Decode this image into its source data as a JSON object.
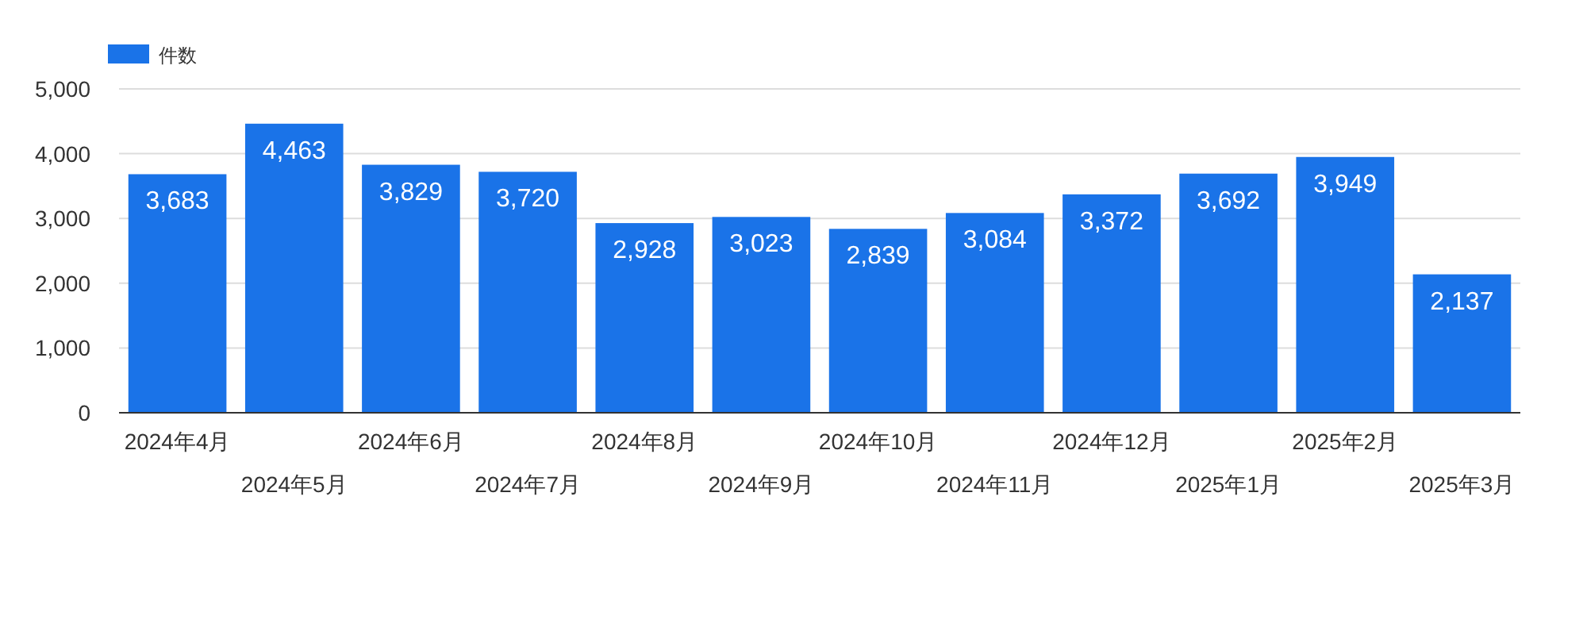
{
  "chart_data": {
    "type": "bar",
    "categories": [
      "2024年4月",
      "2024年5月",
      "2024年6月",
      "2024年7月",
      "2024年8月",
      "2024年9月",
      "2024年10月",
      "2024年11月",
      "2024年12月",
      "2025年1月",
      "2025年2月",
      "2025年3月"
    ],
    "series": [
      {
        "name": "件数",
        "color": "#1a73e8",
        "values": [
          3683,
          4463,
          3829,
          3720,
          2928,
          3023,
          2839,
          3084,
          3372,
          3692,
          3949,
          2137
        ],
        "value_labels": [
          "3,683",
          "4,463",
          "3,829",
          "3,720",
          "2,928",
          "3,023",
          "2,839",
          "3,084",
          "3,372",
          "3,692",
          "3,949",
          "2,137"
        ]
      }
    ],
    "ylim": [
      0,
      5000
    ],
    "yticks": [
      {
        "value": 0,
        "label": "0"
      },
      {
        "value": 1000,
        "label": "1,000"
      },
      {
        "value": 2000,
        "label": "2,000"
      },
      {
        "value": 3000,
        "label": "3,000"
      },
      {
        "value": 4000,
        "label": "4,000"
      },
      {
        "value": 5000,
        "label": "5,000"
      }
    ],
    "grid": "y",
    "legend": "top left"
  }
}
